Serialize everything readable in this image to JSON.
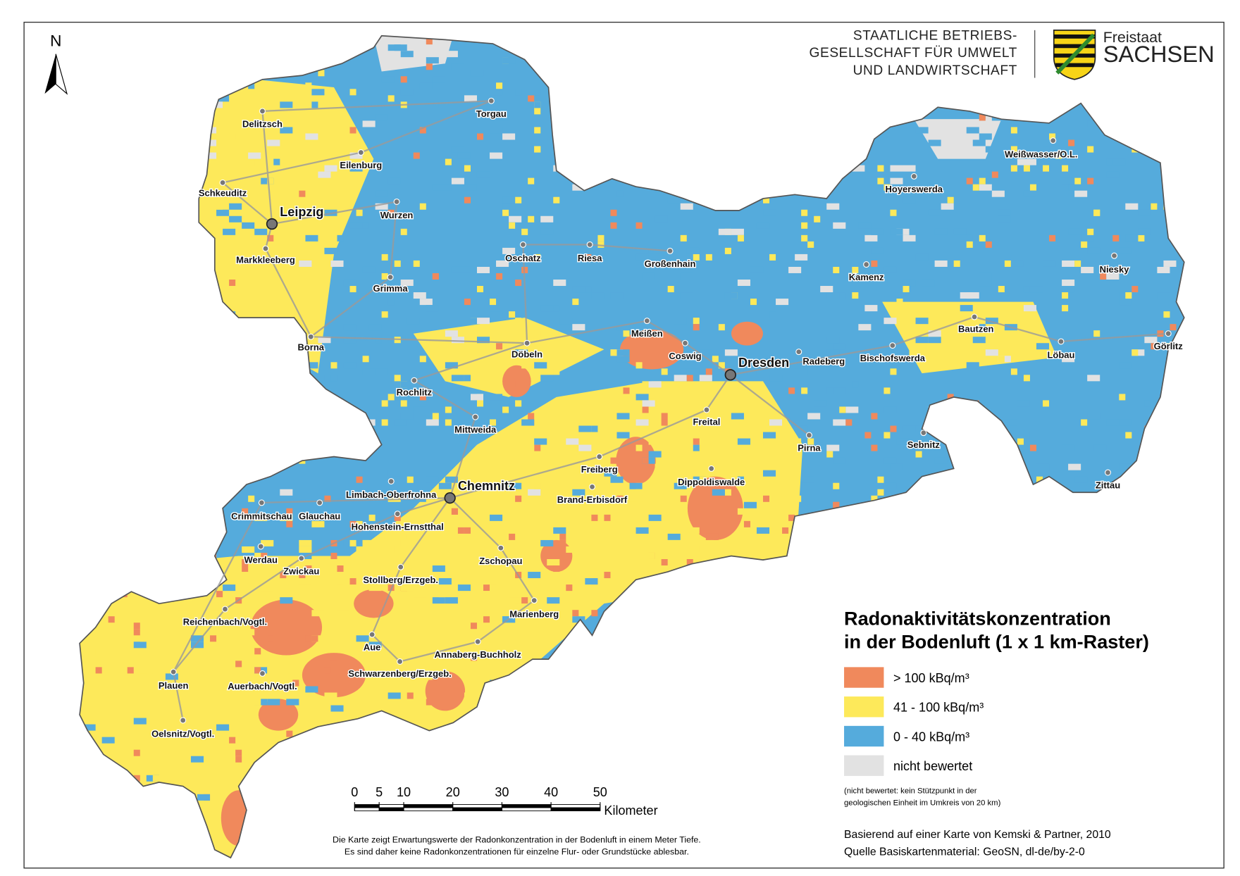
{
  "header": {
    "organization": [
      "STAATLICHE BETRIEBS-",
      "GESELLSCHAFT FÜR UMWELT",
      "UND LANDWIRTSCHAFT"
    ],
    "state": [
      "Freistaat",
      "SACHSEN"
    ]
  },
  "north": "N",
  "cities": [
    {
      "name": "Delitzsch"
    },
    {
      "name": "Torgau"
    },
    {
      "name": "Eilenburg"
    },
    {
      "name": "Schkeuditz"
    },
    {
      "name": "Leipzig",
      "major": true
    },
    {
      "name": "Wurzen"
    },
    {
      "name": "Markkleeberg"
    },
    {
      "name": "Oschatz"
    },
    {
      "name": "Riesa"
    },
    {
      "name": "Großenhain"
    },
    {
      "name": "Grimma"
    },
    {
      "name": "Kamenz"
    },
    {
      "name": "Niesky"
    },
    {
      "name": "Weißwasser/O.L."
    },
    {
      "name": "Hoyerswerda"
    },
    {
      "name": "Borna"
    },
    {
      "name": "Meißen"
    },
    {
      "name": "Bautzen"
    },
    {
      "name": "Görlitz"
    },
    {
      "name": "Döbeln"
    },
    {
      "name": "Coswig"
    },
    {
      "name": "Radeberg"
    },
    {
      "name": "Bischofswerda"
    },
    {
      "name": "Dresden",
      "major": true
    },
    {
      "name": "Löbau"
    },
    {
      "name": "Rochlitz"
    },
    {
      "name": "Freital"
    },
    {
      "name": "Mittweida"
    },
    {
      "name": "Pirna"
    },
    {
      "name": "Sebnitz"
    },
    {
      "name": "Freiberg"
    },
    {
      "name": "Dippoldiswalde"
    },
    {
      "name": "Zittau"
    },
    {
      "name": "Chemnitz",
      "major": true
    },
    {
      "name": "Limbach-Oberfrohna"
    },
    {
      "name": "Brand-Erbisdorf"
    },
    {
      "name": "Crimmitschau"
    },
    {
      "name": "Glauchau"
    },
    {
      "name": "Hohenstein-Ernstthal"
    },
    {
      "name": "Zschopau"
    },
    {
      "name": "Werdau"
    },
    {
      "name": "Zwickau"
    },
    {
      "name": "Stollberg/Erzgeb."
    },
    {
      "name": "Marienberg"
    },
    {
      "name": "Reichenbach/Vogtl."
    },
    {
      "name": "Aue"
    },
    {
      "name": "Annaberg-Buchholz"
    },
    {
      "name": "Schwarzenberg/Erzgeb."
    },
    {
      "name": "Plauen"
    },
    {
      "name": "Auerbach/Vogtl."
    },
    {
      "name": "Oelsnitz/Vogtl."
    }
  ],
  "legend": {
    "title": [
      "Radonaktivitätskonzentration",
      "in der Bodenluft (1 x 1 km-Raster)"
    ],
    "items": [
      {
        "label": "> 100 kBq/m³",
        "color": "#f0895c"
      },
      {
        "label": "41 - 100 kBq/m³",
        "color": "#fde95a"
      },
      {
        "label": "0 - 40 kBq/m³",
        "color": "#55abdc"
      },
      {
        "label": "nicht bewertet",
        "color": "#e2e2e2"
      }
    ],
    "note": [
      "(nicht bewertet: kein Stützpunkt in der",
      "geologischen Einheit im Umkreis von 20 km)"
    ]
  },
  "scale": {
    "ticks": [
      0,
      5,
      10,
      20,
      30,
      40,
      50
    ],
    "unit": "Kilometer"
  },
  "disclaimer": [
    "Die Karte zeigt Erwartungswerte der Radonkonzentration in der Bodenluft in einem Meter Tiefe.",
    "Es sind daher keine Radonkonzentrationen für einzelne Flur- oder Grundstücke ablesbar."
  ],
  "sources": [
    "Basierend auf einer Karte von Kemski & Partner, 2010",
    "Quelle Basiskartenmaterial: GeoSN, dl-de/by-2-0"
  ]
}
